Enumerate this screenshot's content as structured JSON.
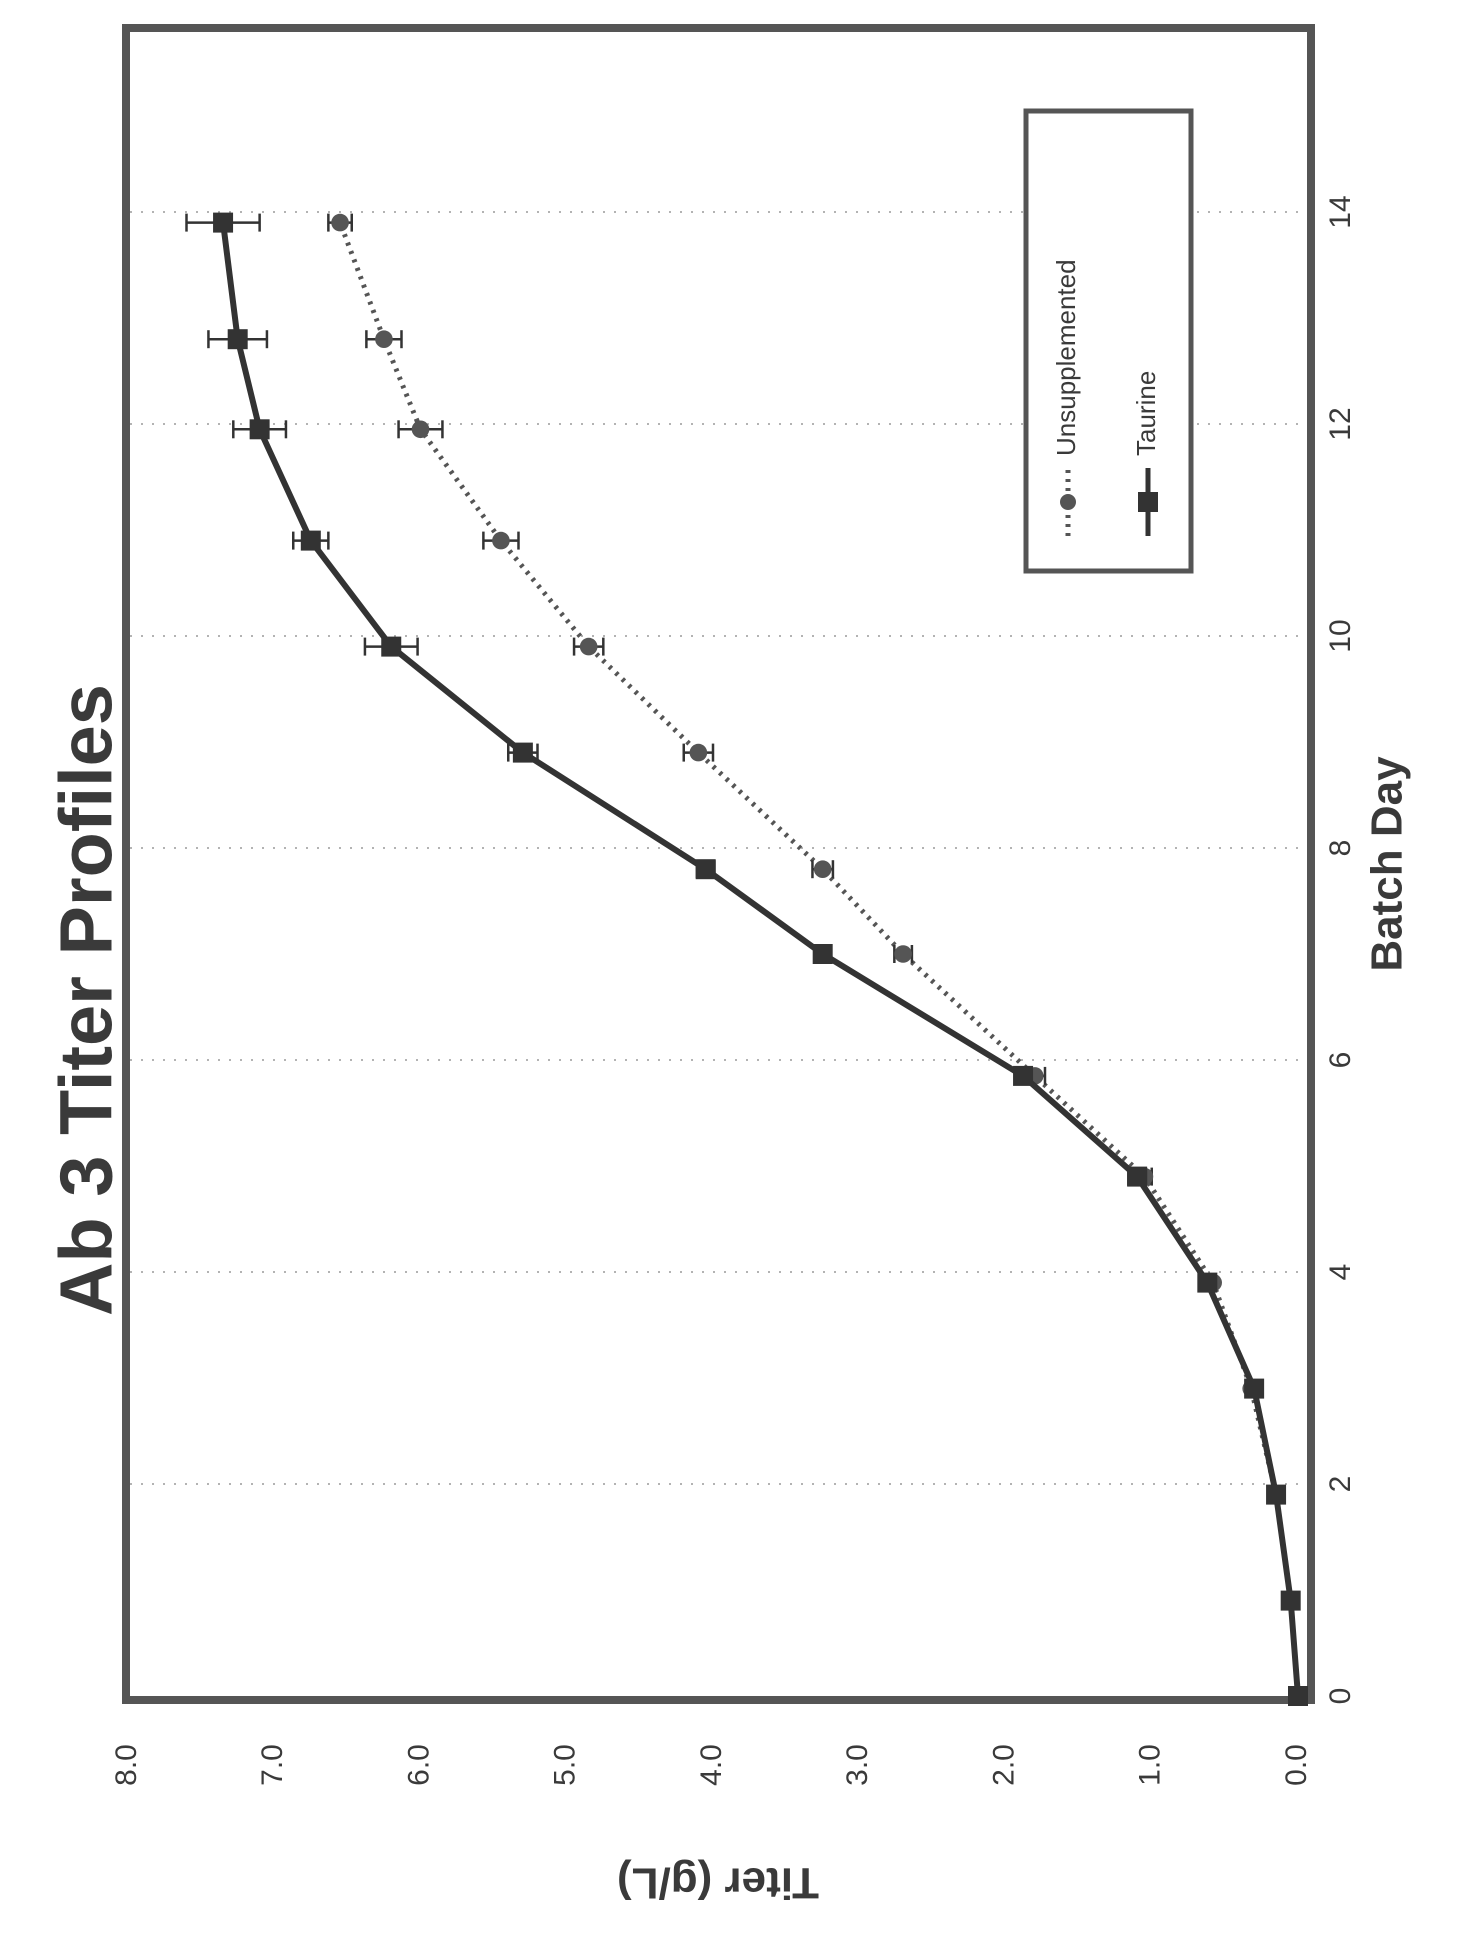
{
  "chart_data": {
    "type": "line",
    "title": "Ab 3 Titer Profiles",
    "xlabel": "Batch Day",
    "ylabel": "Titer (g/L)",
    "xlim": [
      0,
      15
    ],
    "ylim": [
      0,
      8
    ],
    "x_ticks": [
      "0",
      "2",
      "4",
      "6",
      "8",
      "10",
      "12",
      "14"
    ],
    "y_ticks": [
      "0.0",
      "1.0",
      "2.0",
      "3.0",
      "4.0",
      "5.0",
      "6.0",
      "7.0",
      "8.0"
    ],
    "grid": "dotted",
    "legend_position": "top-right",
    "series": [
      {
        "name": "Unsupplemented",
        "style": "dotted",
        "marker": "circle",
        "color": "#555555",
        "points": [
          {
            "x": 0,
            "y": 0.0,
            "err": 0.02
          },
          {
            "x": 0.9,
            "y": 0.05,
            "err": 0.02
          },
          {
            "x": 1.9,
            "y": 0.15,
            "err": 0.03
          },
          {
            "x": 2.9,
            "y": 0.32,
            "err": 0.04
          },
          {
            "x": 3.9,
            "y": 0.58,
            "err": 0.04
          },
          {
            "x": 4.9,
            "y": 1.05,
            "err": 0.05
          },
          {
            "x": 5.85,
            "y": 1.8,
            "err": 0.07
          },
          {
            "x": 7.0,
            "y": 2.7,
            "err": 0.06
          },
          {
            "x": 7.8,
            "y": 3.25,
            "err": 0.07
          },
          {
            "x": 8.9,
            "y": 4.1,
            "err": 0.1
          },
          {
            "x": 9.9,
            "y": 4.85,
            "err": 0.1
          },
          {
            "x": 10.9,
            "y": 5.45,
            "err": 0.12
          },
          {
            "x": 11.95,
            "y": 6.0,
            "err": 0.15
          },
          {
            "x": 12.8,
            "y": 6.25,
            "err": 0.12
          },
          {
            "x": 13.9,
            "y": 6.55,
            "err": 0.08
          }
        ]
      },
      {
        "name": "Taurine",
        "style": "solid",
        "marker": "square",
        "color": "#333333",
        "points": [
          {
            "x": 0,
            "y": 0.0,
            "err": 0.02
          },
          {
            "x": 0.9,
            "y": 0.05,
            "err": 0.02
          },
          {
            "x": 1.9,
            "y": 0.15,
            "err": 0.03
          },
          {
            "x": 2.9,
            "y": 0.3,
            "err": 0.04
          },
          {
            "x": 3.9,
            "y": 0.62,
            "err": 0.05
          },
          {
            "x": 4.9,
            "y": 1.1,
            "err": 0.06
          },
          {
            "x": 5.85,
            "y": 1.88,
            "err": 0.05
          },
          {
            "x": 7.0,
            "y": 3.25,
            "err": 0.05
          },
          {
            "x": 7.8,
            "y": 4.05,
            "err": 0.06
          },
          {
            "x": 8.9,
            "y": 5.3,
            "err": 0.1
          },
          {
            "x": 9.9,
            "y": 6.2,
            "err": 0.18
          },
          {
            "x": 10.9,
            "y": 6.75,
            "err": 0.12
          },
          {
            "x": 11.95,
            "y": 7.1,
            "err": 0.18
          },
          {
            "x": 12.8,
            "y": 7.25,
            "err": 0.2
          },
          {
            "x": 13.9,
            "y": 7.35,
            "err": 0.25
          }
        ]
      }
    ]
  }
}
